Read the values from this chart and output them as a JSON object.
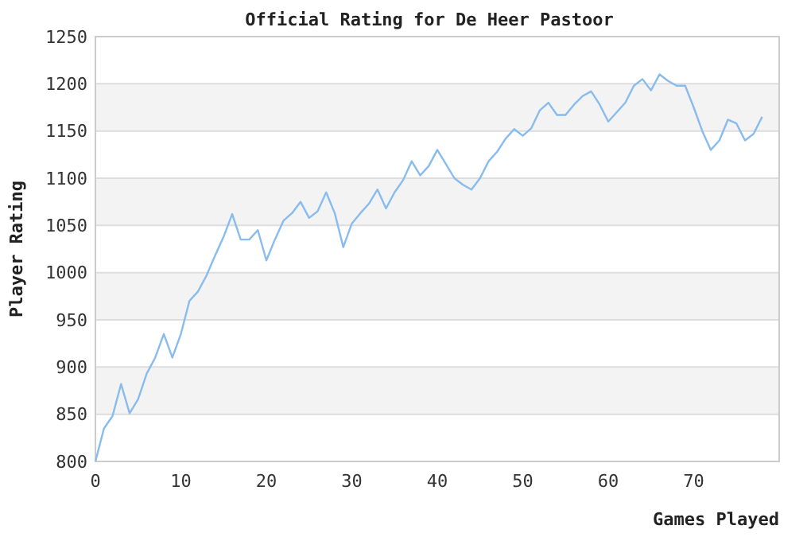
{
  "chart_data": {
    "type": "line",
    "title": "Official Rating for De Heer Pastoor",
    "xlabel": "Games Played",
    "ylabel": "Player Rating",
    "x": [
      0,
      1,
      2,
      3,
      4,
      5,
      6,
      7,
      8,
      9,
      10,
      11,
      12,
      13,
      14,
      15,
      16,
      17,
      18,
      19,
      20,
      21,
      22,
      23,
      24,
      25,
      26,
      27,
      28,
      29,
      30,
      31,
      32,
      33,
      34,
      35,
      36,
      37,
      38,
      39,
      40,
      41,
      42,
      43,
      44,
      45,
      46,
      47,
      48,
      49,
      50,
      51,
      52,
      53,
      54,
      55,
      56,
      57,
      58,
      59,
      60,
      61,
      62,
      63,
      64,
      65,
      66,
      67,
      68,
      69,
      70,
      71,
      72,
      73,
      74,
      75,
      76,
      77,
      78
    ],
    "series": [
      {
        "color": "#88bbee",
        "values": [
          800,
          835,
          848,
          882,
          851,
          866,
          893,
          910,
          935,
          910,
          935,
          970,
          980,
          997,
          1018,
          1038,
          1062,
          1035,
          1035,
          1045,
          1013,
          1035,
          1055,
          1063,
          1075,
          1058,
          1065,
          1085,
          1063,
          1027,
          1052,
          1063,
          1073,
          1088,
          1068,
          1085,
          1098,
          1118,
          1103,
          1113,
          1130,
          1115,
          1100,
          1093,
          1088,
          1100,
          1118,
          1128,
          1142,
          1152,
          1145,
          1153,
          1172,
          1180,
          1167,
          1167,
          1178,
          1187,
          1192,
          1178,
          1160,
          1170,
          1180,
          1198,
          1205,
          1193,
          1210,
          1203,
          1198,
          1198,
          1175,
          1150,
          1130,
          1140,
          1162,
          1158,
          1140,
          1147,
          1165
        ]
      }
    ],
    "xlim": [
      0,
      80
    ],
    "xticks": [
      0,
      10,
      20,
      30,
      40,
      50,
      60,
      70
    ],
    "ylim": [
      800,
      1250
    ],
    "yticks": [
      800,
      850,
      900,
      950,
      1000,
      1050,
      1100,
      1150,
      1200,
      1250
    ],
    "grid": "y",
    "marker": "none",
    "line_style": "solid"
  }
}
